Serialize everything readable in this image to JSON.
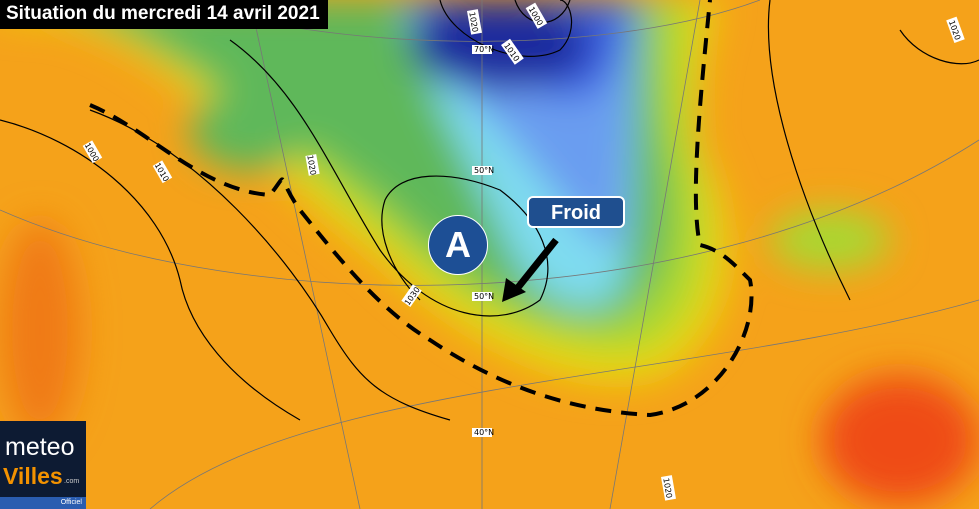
{
  "title": "Situation du mercredi 14 avril 2021",
  "annotations": {
    "cold_label": "Froid",
    "high_pressure_label": "A"
  },
  "isobar_labels": [
    "1000",
    "1010",
    "1020",
    "1030",
    "1020",
    "1000",
    "1010",
    "1020",
    "1020"
  ],
  "latitude_labels": [
    "70°N",
    "50°N",
    "50°N",
    "40°N"
  ],
  "logo": {
    "line1": "meteo",
    "line2": "Villes",
    "domain": ".com",
    "badge": "Officiel"
  },
  "colors": {
    "cold": "#1a2a9e",
    "mild": "#7bc43a",
    "warm": "#f5a21a",
    "hot": "#ef4b16",
    "label_bg": "#1f4f8f"
  }
}
